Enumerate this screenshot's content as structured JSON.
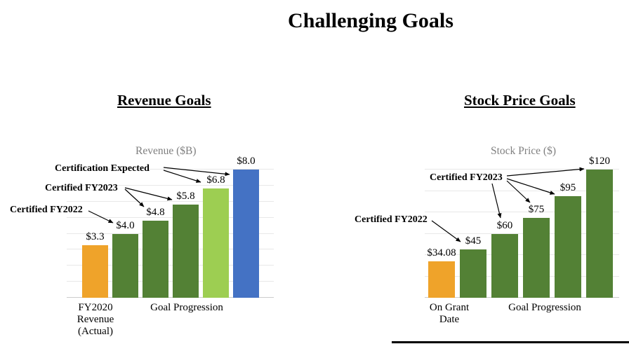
{
  "title": "Challenging Goals",
  "left_chart": {
    "heading": "Revenue Goals"
  },
  "right_chart": {
    "heading": "Stock Price Goals"
  },
  "colors": {
    "actual_bar": "#EFA32A",
    "certified_bar": "#538135",
    "expected_bar": "#9DCE52",
    "future_bar": "#4472C4",
    "gridline": "#E8E8E8",
    "chart_title_gray": "#7F7F7F"
  },
  "chart_data": [
    {
      "type": "bar",
      "title": "Revenue ($B)",
      "values": [
        3.3,
        4.0,
        4.8,
        5.8,
        6.8,
        8.0
      ],
      "labels": [
        "$3.3",
        "$4.0",
        "$4.8",
        "$5.8",
        "$6.8",
        "$8.0"
      ],
      "colors": [
        "#EFA32A",
        "#538135",
        "#538135",
        "#538135",
        "#9DCE52",
        "#4472C4"
      ],
      "ylim": [
        0,
        8
      ],
      "grid": true,
      "grid_step": 1,
      "x_axis_labels": [
        "FY2020\nRevenue\n(Actual)",
        "Goal Progression"
      ],
      "annotations": [
        {
          "text": "Certification Expected",
          "targets": [
            "$6.8",
            "$8.0"
          ]
        },
        {
          "text": "Certified FY2023",
          "targets": [
            "$4.8",
            "$5.8"
          ]
        },
        {
          "text": "Certified FY2022",
          "targets": [
            "$4.0"
          ]
        }
      ]
    },
    {
      "type": "bar",
      "title": "Stock Price ($)",
      "values": [
        34.08,
        45,
        60,
        75,
        95,
        120
      ],
      "labels": [
        "$34.08",
        "$45",
        "$60",
        "$75",
        "$95",
        "$120"
      ],
      "colors": [
        "#EFA32A",
        "#538135",
        "#538135",
        "#538135",
        "#538135",
        "#538135"
      ],
      "ylim": [
        0,
        120
      ],
      "grid": true,
      "grid_step": 20,
      "x_axis_labels": [
        "On Grant\nDate",
        "Goal Progression"
      ],
      "annotations": [
        {
          "text": "Certified FY2023",
          "targets": [
            "$60",
            "$75",
            "$95",
            "$120"
          ]
        },
        {
          "text": "Certified FY2022",
          "targets": [
            "$45"
          ]
        }
      ]
    }
  ]
}
